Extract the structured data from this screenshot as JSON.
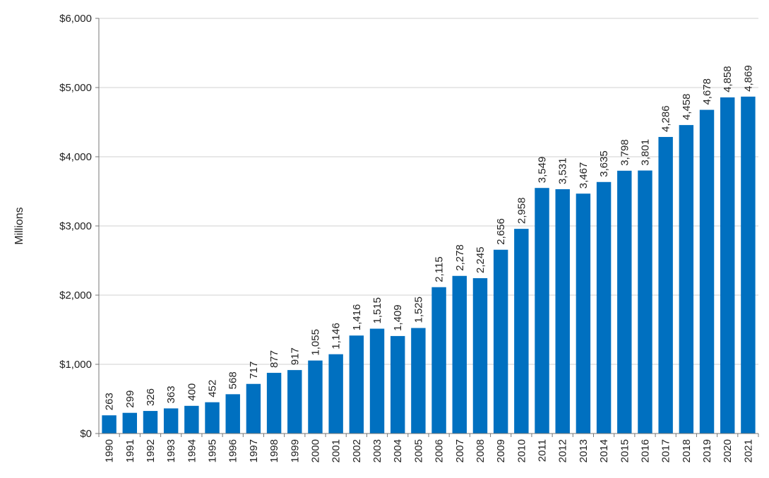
{
  "chart_data": {
    "type": "bar",
    "title": "",
    "xlabel": "",
    "ylabel": "Millions",
    "ylim": [
      0,
      6000
    ],
    "yticks": [
      {
        "value": 0,
        "label": "$0"
      },
      {
        "value": 1000,
        "label": "$1,000"
      },
      {
        "value": 2000,
        "label": "$2,000"
      },
      {
        "value": 3000,
        "label": "$3,000"
      },
      {
        "value": 4000,
        "label": "$4,000"
      },
      {
        "value": 5000,
        "label": "$5,000"
      },
      {
        "value": 6000,
        "label": "$6,000"
      }
    ],
    "grid": true,
    "legend": "none",
    "bar_color": "#0070C0",
    "categories": [
      "1990",
      "1991",
      "1992",
      "1993",
      "1994",
      "1995",
      "1996",
      "1997",
      "1998",
      "1999",
      "2000",
      "2001",
      "2002",
      "2003",
      "2004",
      "2005",
      "2006",
      "2007",
      "2008",
      "2009",
      "2010",
      "2011",
      "2012",
      "2013",
      "2014",
      "2015",
      "2016",
      "2017",
      "2018",
      "2019",
      "2020",
      "2021"
    ],
    "values": [
      263,
      299,
      326,
      363,
      400,
      452,
      568,
      717,
      877,
      917,
      1055,
      1146,
      1416,
      1515,
      1409,
      1525,
      2115,
      2278,
      2245,
      2656,
      2958,
      3549,
      3531,
      3467,
      3635,
      3798,
      3801,
      4286,
      4458,
      4678,
      4858,
      4869
    ],
    "value_labels": [
      "263",
      "299",
      "326",
      "363",
      "400",
      "452",
      "568",
      "717",
      "877",
      "917",
      "1,055",
      "1,146",
      "1,416",
      "1,515",
      "1,409",
      "1,525",
      "2,115",
      "2,278",
      "2,245",
      "2,656",
      "2,958",
      "3,549",
      "3,531",
      "3,467",
      "3,635",
      "3,798",
      "3,801",
      "4,286",
      "4,458",
      "4,678",
      "4,858",
      "4,869"
    ]
  }
}
